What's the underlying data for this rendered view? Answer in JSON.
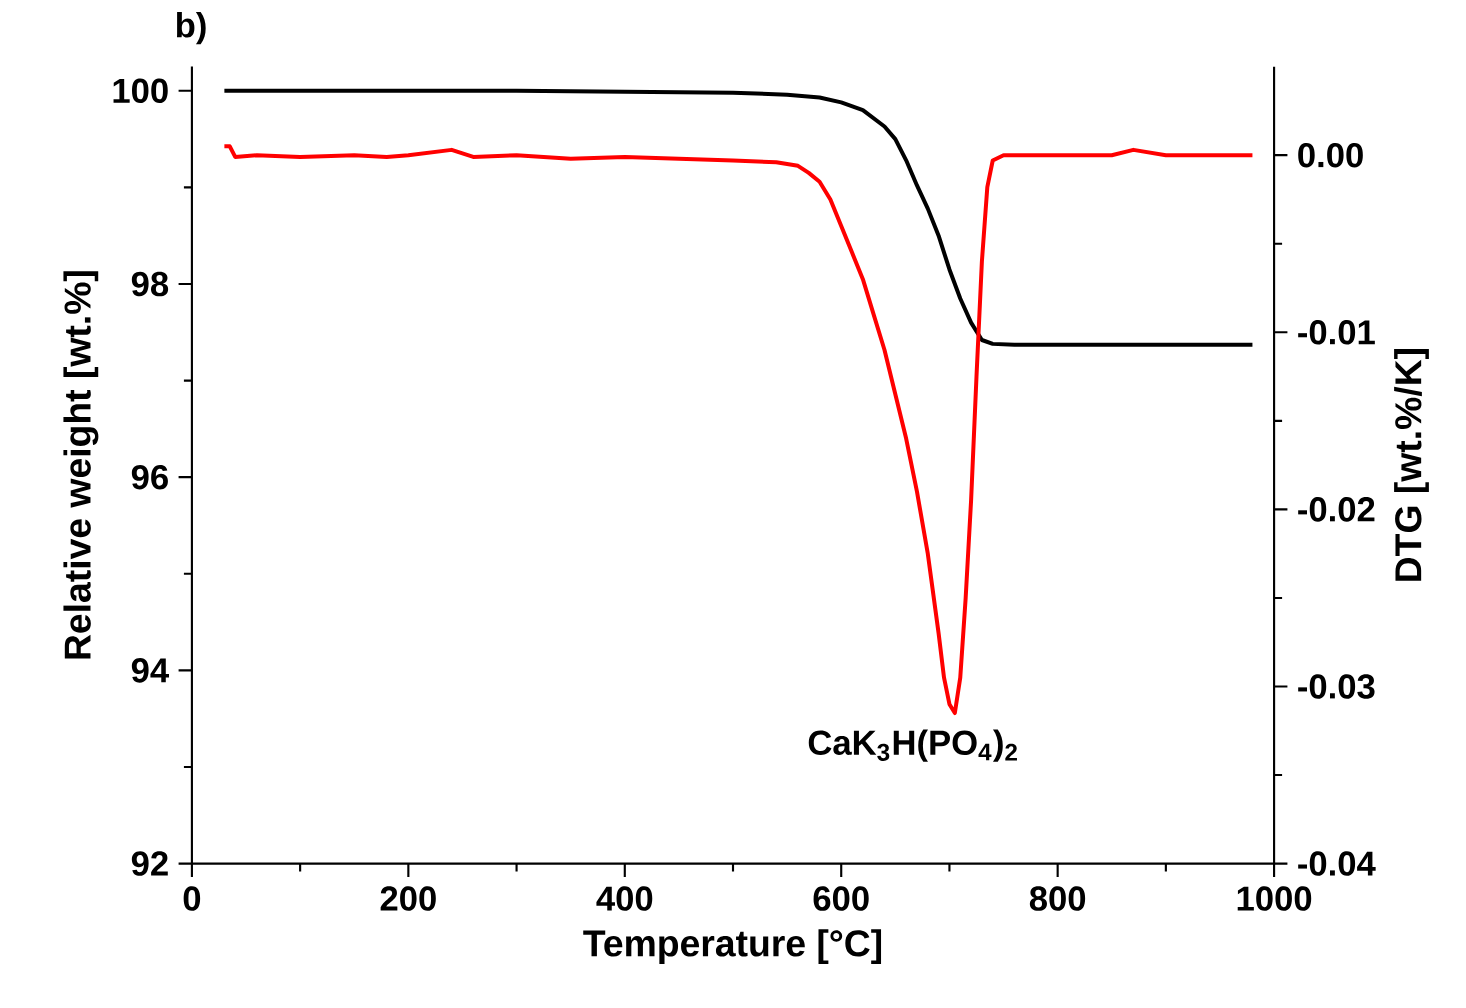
{
  "chart_data": {
    "type": "line",
    "title": "b)",
    "xlabel": "Temperature [°C]",
    "ylabel": "Relative weight [wt.%]",
    "y2label": "DTG [wt.%/K]",
    "annotations": [
      "CaK$_{3}$H(PO$_{4}$)$_{2}$"
    ],
    "xlim": [
      0,
      1000
    ],
    "xticks": [
      0,
      200,
      400,
      600,
      800,
      1000
    ],
    "ylim": [
      92,
      100.25
    ],
    "yticks": [
      92,
      94,
      96,
      98,
      100
    ],
    "y2lim": [
      -0.04,
      0.005
    ],
    "y2ticks": [
      {
        "value": -0.04,
        "label": "-0.04"
      },
      {
        "value": -0.03,
        "label": "-0.03"
      },
      {
        "value": -0.02,
        "label": "-0.02"
      },
      {
        "value": -0.01,
        "label": "-0.01"
      },
      {
        "value": 0,
        "label": "0.00"
      }
    ],
    "series": [
      {
        "color": "#000000",
        "x": [
          30,
          100,
          200,
          300,
          400,
          500,
          550,
          580,
          600,
          620,
          640,
          650,
          660,
          670,
          680,
          690,
          700,
          710,
          720,
          730,
          740,
          760,
          800,
          900,
          980
        ],
        "values": [
          100,
          100,
          100,
          100,
          99.99,
          99.98,
          99.96,
          99.93,
          99.88,
          99.8,
          99.63,
          99.5,
          99.28,
          99.02,
          98.78,
          98.5,
          98.15,
          97.85,
          97.6,
          97.42,
          97.38,
          97.37,
          97.37,
          97.37,
          97.37
        ]
      },
      {
        "color": "#ff0000",
        "axis": "y2",
        "x": [
          30,
          35,
          40,
          60,
          100,
          150,
          180,
          200,
          240,
          260,
          300,
          350,
          400,
          450,
          500,
          540,
          560,
          570,
          580,
          590,
          600,
          610,
          620,
          630,
          640,
          650,
          660,
          670,
          680,
          690,
          695,
          700,
          705,
          710,
          715,
          720,
          725,
          730,
          735,
          740,
          750,
          760,
          800,
          850,
          870,
          900,
          950,
          980
        ],
        "values": [
          0.0005,
          0.0005,
          -0.0001,
          0,
          -0.0001,
          0,
          -0.0001,
          0,
          0.0003,
          -0.0001,
          0,
          -0.0002,
          -0.0001,
          -0.0002,
          -0.0003,
          -0.0004,
          -0.0006,
          -0.001,
          -0.0015,
          -0.0025,
          -0.004,
          -0.0055,
          -0.007,
          -0.009,
          -0.011,
          -0.0135,
          -0.016,
          -0.019,
          -0.0225,
          -0.027,
          -0.0295,
          -0.031,
          -0.0315,
          -0.0295,
          -0.025,
          -0.0195,
          -0.0125,
          -0.006,
          -0.0018,
          -0.0003,
          0,
          0,
          0,
          0,
          0.0003,
          0,
          0,
          0
        ]
      }
    ]
  }
}
